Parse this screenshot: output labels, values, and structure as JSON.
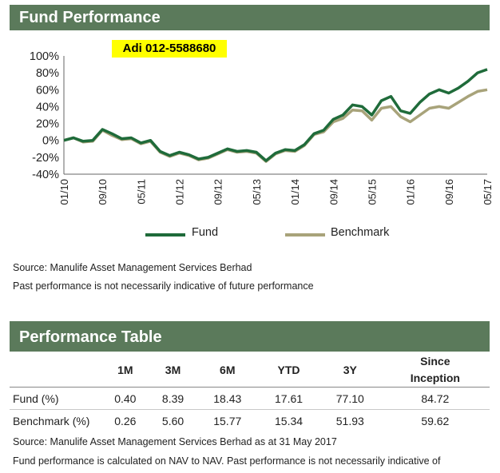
{
  "header": {
    "title": "Fund Performance"
  },
  "overlay": {
    "phone": "Adi 012-5588680"
  },
  "chart_data": {
    "type": "line",
    "x": [
      "01/10",
      "03/10",
      "05/10",
      "07/10",
      "09/10",
      "11/10",
      "01/11",
      "03/11",
      "05/11",
      "07/11",
      "09/11",
      "11/11",
      "01/12",
      "03/12",
      "05/12",
      "07/12",
      "09/12",
      "11/12",
      "01/13",
      "03/13",
      "05/13",
      "07/13",
      "09/13",
      "11/13",
      "01/14",
      "03/14",
      "05/14",
      "07/14",
      "09/14",
      "11/14",
      "01/15",
      "03/15",
      "05/15",
      "07/15",
      "09/15",
      "11/15",
      "01/16",
      "03/16",
      "05/16",
      "07/16",
      "09/16",
      "11/16",
      "01/17",
      "03/17",
      "05/17"
    ],
    "x_tick_labels": [
      "01/10",
      "09/10",
      "05/11",
      "01/12",
      "09/12",
      "05/13",
      "01/14",
      "09/14",
      "05/15",
      "01/16",
      "09/16",
      "05/17"
    ],
    "y_tick_labels": [
      "100%",
      "80%",
      "60%",
      "40%",
      "20%",
      "0%",
      "-20%",
      "-40%"
    ],
    "ylim": [
      -40,
      100
    ],
    "series": [
      {
        "name": "Fund",
        "color": "#1f6b3a",
        "values": [
          0,
          3,
          -1,
          0,
          13,
          8,
          2,
          3,
          -3,
          0,
          -13,
          -18,
          -14,
          -17,
          -22,
          -20,
          -15,
          -10,
          -13,
          -12,
          -14,
          -24,
          -15,
          -11,
          -12,
          -5,
          8,
          12,
          25,
          30,
          42,
          40,
          30,
          47,
          52,
          35,
          32,
          45,
          55,
          60,
          56,
          62,
          70,
          80,
          84
        ]
      },
      {
        "name": "Benchmark",
        "color": "#a8a37a",
        "values": [
          0,
          3,
          -2,
          -1,
          12,
          6,
          1,
          2,
          -4,
          -1,
          -14,
          -19,
          -15,
          -18,
          -23,
          -21,
          -16,
          -11,
          -14,
          -13,
          -15,
          -25,
          -16,
          -12,
          -13,
          -6,
          7,
          10,
          22,
          26,
          36,
          35,
          24,
          38,
          40,
          28,
          22,
          30,
          38,
          40,
          38,
          45,
          52,
          58,
          60
        ]
      }
    ],
    "legend_position": "bottom"
  },
  "notes": {
    "source1": "Source: Manulife Asset Management Services Berhad",
    "disclaimer1": "Past performance is not necessarily indicative of future performance"
  },
  "table": {
    "title": "Performance Table",
    "col1": "1M",
    "col2": "3M",
    "col3": "6M",
    "col4": "YTD",
    "col5": "3Y",
    "col6a": "Since",
    "col6b": "Inception",
    "rows": [
      {
        "label": "Fund (%)",
        "v": [
          "0.40",
          "8.39",
          "18.43",
          "17.61",
          "77.10",
          "84.72"
        ]
      },
      {
        "label": "Benchmark (%)",
        "v": [
          "0.26",
          "5.60",
          "15.77",
          "15.34",
          "51.93",
          "59.62"
        ]
      }
    ]
  },
  "footer": {
    "source2": "Source: Manulife Asset Management Services Berhad as at 31 May 2017",
    "disclaimer2": "Fund performance is calculated on NAV to NAV. Past performance is not necessarily indicative of"
  }
}
